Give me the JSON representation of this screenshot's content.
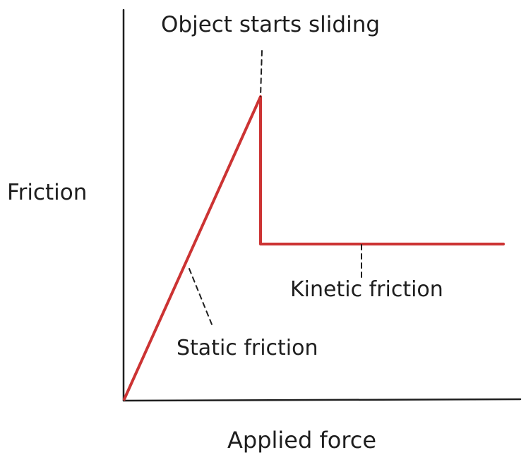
{
  "labels": {
    "y_axis": "Friction",
    "x_axis": "Applied force",
    "peak": "Object starts sliding",
    "kinetic": "Kinetic friction",
    "static": "Static friction"
  },
  "colors": {
    "curve": "#cc3333",
    "ink": "#1e1e1e"
  }
}
